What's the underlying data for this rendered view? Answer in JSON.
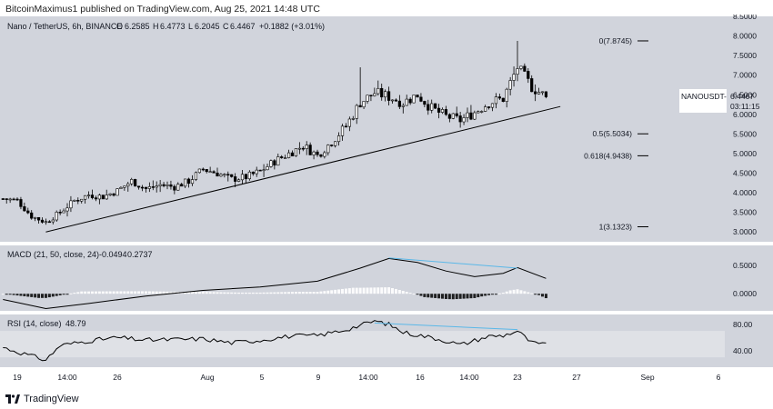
{
  "header": {
    "text": "BitcoinMaximus1 published on TradingView.com, Aug 25, 2021 14:48 UTC"
  },
  "symbol_info": {
    "name": "Nano / TetherUS, 6h, BINANCE",
    "o_label": "O",
    "o": "6.2585",
    "h_label": "H",
    "h": "6.4773",
    "l_label": "L",
    "l": "6.2045",
    "c_label": "C",
    "c": "6.4467",
    "change": "+0.1882 (+3.01%)"
  },
  "price_tag": {
    "symbol": "NANOUSDT",
    "value": "6.4467",
    "countdown": "03:11:15"
  },
  "macd_info": {
    "label": "MACD (21, 50, close, 24)",
    "v1": "-0.0494",
    "v2": "0.2737"
  },
  "rsi_info": {
    "label": "RSI (14, close)",
    "value": "48.79"
  },
  "footer": {
    "brand": "TradingView"
  },
  "colors": {
    "background": "#d1d4dc",
    "candle": "#000000",
    "trendline": "#000000",
    "divergence": "#5bb8e8",
    "macd_hist_positive": "#ffffff",
    "macd_hist_negative": "#000000",
    "rsi_band": "#dfe1e6"
  },
  "chart_data": [
    {
      "type": "candlestick",
      "title": "Nano / TetherUS, 6h, BINANCE",
      "x_ticks": [
        "19",
        "14:00",
        "26",
        "Aug",
        "5",
        "9",
        "14:00",
        "16",
        "14:00",
        "23",
        "27",
        "Sep",
        "6"
      ],
      "y_ticks": [
        "3.0000",
        "3.5000",
        "4.0000",
        "4.5000",
        "5.0000",
        "5.5000",
        "6.0000",
        "6.5000",
        "7.0000",
        "7.5000",
        "8.0000",
        "8.5000"
      ],
      "ylim": [
        2.75,
        8.5
      ],
      "close_path": [
        [
          "Jul 18",
          3.85
        ],
        [
          "Jul 19",
          3.8
        ],
        [
          "Jul 20",
          3.4
        ],
        [
          "Jul 21",
          3.25
        ],
        [
          "Jul 22",
          3.5
        ],
        [
          "Jul 23",
          3.8
        ],
        [
          "Jul 24",
          3.95
        ],
        [
          "Jul 25",
          3.9
        ],
        [
          "Jul 26",
          4.05
        ],
        [
          "Jul 27",
          4.3
        ],
        [
          "Jul 28",
          4.1
        ],
        [
          "Jul 29",
          4.2
        ],
        [
          "Jul 30",
          4.15
        ],
        [
          "Jul 31",
          4.3
        ],
        [
          "Aug 1",
          4.6
        ],
        [
          "Aug 2",
          4.5
        ],
        [
          "Aug 3",
          4.35
        ],
        [
          "Aug 4",
          4.4
        ],
        [
          "Aug 5",
          4.55
        ],
        [
          "Aug 6",
          4.8
        ],
        [
          "Aug 7",
          5.0
        ],
        [
          "Aug 8",
          5.2
        ],
        [
          "Aug 9",
          4.95
        ],
        [
          "Aug 10",
          5.3
        ],
        [
          "Aug 11",
          5.7
        ],
        [
          "Aug 12",
          6.3
        ],
        [
          "Aug 13",
          6.55
        ],
        [
          "Aug 14",
          6.45
        ],
        [
          "Aug 15",
          6.3
        ],
        [
          "Aug 16",
          6.5
        ],
        [
          "Aug 17",
          6.15
        ],
        [
          "Aug 18",
          5.95
        ],
        [
          "Aug 19",
          5.85
        ],
        [
          "Aug 20",
          6.05
        ],
        [
          "Aug 21",
          6.3
        ],
        [
          "Aug 22",
          6.4
        ],
        [
          "Aug 23",
          7.2
        ],
        [
          "Aug 24",
          6.7
        ],
        [
          "Aug 25",
          6.4467
        ]
      ],
      "spike_high": 7.8745,
      "fib_levels": [
        {
          "label": "0(7.8745)",
          "value": 7.8745
        },
        {
          "label": "0.5(5.5034)",
          "value": 5.5034
        },
        {
          "label": "0.618(4.9438)",
          "value": 4.9438
        },
        {
          "label": "1(3.1323)",
          "value": 3.1323
        }
      ],
      "trendline": {
        "from": [
          "Jul 21",
          3.0
        ],
        "to": [
          "Aug 26",
          6.2
        ]
      }
    },
    {
      "type": "bar",
      "title": "MACD (21, 50, close, 24)",
      "y_ticks": [
        "0.5000",
        "0.0000"
      ],
      "ylim": [
        -0.3,
        0.85
      ],
      "macd_line_path": [
        [
          "Jul 18",
          -0.1
        ],
        [
          "Jul 21",
          -0.26
        ],
        [
          "Jul 24",
          -0.17
        ],
        [
          "Jul 28",
          -0.04
        ],
        [
          "Aug 1",
          0.06
        ],
        [
          "Aug 5",
          0.12
        ],
        [
          "Aug 9",
          0.22
        ],
        [
          "Aug 12",
          0.45
        ],
        [
          "Aug 14",
          0.62
        ],
        [
          "Aug 16",
          0.55
        ],
        [
          "Aug 18",
          0.4
        ],
        [
          "Aug 20",
          0.3
        ],
        [
          "Aug 22",
          0.36
        ],
        [
          "Aug 23",
          0.46
        ],
        [
          "Aug 25",
          0.27
        ]
      ],
      "divergence": {
        "from": [
          "Aug 14",
          0.63
        ],
        "to": [
          "Aug 23",
          0.45
        ]
      }
    },
    {
      "type": "line",
      "title": "RSI (14, close)",
      "y_ticks": [
        "80.00",
        "40.00"
      ],
      "ylim": [
        15,
        95
      ],
      "band": [
        30,
        70
      ],
      "rsi_path": [
        [
          "Jul 18",
          45
        ],
        [
          "Jul 20",
          32
        ],
        [
          "Jul 21",
          26
        ],
        [
          "Jul 22",
          48
        ],
        [
          "Jul 24",
          55
        ],
        [
          "Jul 26",
          60
        ],
        [
          "Jul 28",
          56
        ],
        [
          "Aug 1",
          58
        ],
        [
          "Aug 3",
          52
        ],
        [
          "Aug 5",
          56
        ],
        [
          "Aug 7",
          62
        ],
        [
          "Aug 9",
          63
        ],
        [
          "Aug 11",
          72
        ],
        [
          "Aug 13",
          85
        ],
        [
          "Aug 14",
          80
        ],
        [
          "Aug 15",
          68
        ],
        [
          "Aug 17",
          60
        ],
        [
          "Aug 18",
          55
        ],
        [
          "Aug 19",
          49
        ],
        [
          "Aug 21",
          62
        ],
        [
          "Aug 22",
          63
        ],
        [
          "Aug 23",
          70
        ],
        [
          "Aug 24",
          52
        ],
        [
          "Aug 25",
          48.79
        ]
      ],
      "divergence": {
        "from": [
          "Aug 13",
          82
        ],
        "to": [
          "Aug 23",
          72
        ]
      }
    }
  ]
}
